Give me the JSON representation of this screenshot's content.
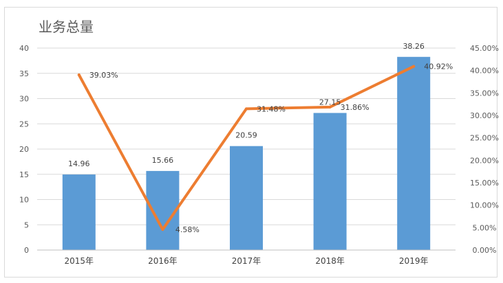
{
  "chart_data": {
    "type": "bar",
    "title": "业务总量",
    "categories": [
      "2015年",
      "2016年",
      "2017年",
      "2018年",
      "2019年"
    ],
    "series": [
      {
        "type": "bar",
        "axis": "left",
        "color": "#5b9bd5",
        "values": [
          14.96,
          15.66,
          20.59,
          27.15,
          38.26
        ],
        "labels": [
          "14.96",
          "15.66",
          "20.59",
          "27.15",
          "38.26"
        ]
      },
      {
        "type": "line",
        "axis": "right",
        "color": "#ed7d31",
        "values": [
          0.3903,
          0.0458,
          0.3148,
          0.3186,
          0.4092
        ],
        "labels": [
          "39.03%",
          "4.58%",
          "31.48%",
          "31.86%",
          "40.92%"
        ]
      }
    ],
    "y_left": {
      "ylim": [
        0,
        40
      ],
      "ticks": [
        0,
        5,
        10,
        15,
        20,
        25,
        30,
        35,
        40
      ],
      "tick_labels": [
        "0",
        "5",
        "10",
        "15",
        "20",
        "25",
        "30",
        "35",
        "40"
      ]
    },
    "y_right": {
      "ylim": [
        0,
        0.45
      ],
      "ticks": [
        0,
        0.05,
        0.1,
        0.15,
        0.2,
        0.25,
        0.3,
        0.35,
        0.4,
        0.45
      ],
      "tick_labels": [
        "0.00%",
        "5.00%",
        "10.00%",
        "15.00%",
        "20.00%",
        "25.00%",
        "30.00%",
        "35.00%",
        "40.00%",
        "45.00%"
      ]
    },
    "grid": true,
    "legend": "none"
  }
}
